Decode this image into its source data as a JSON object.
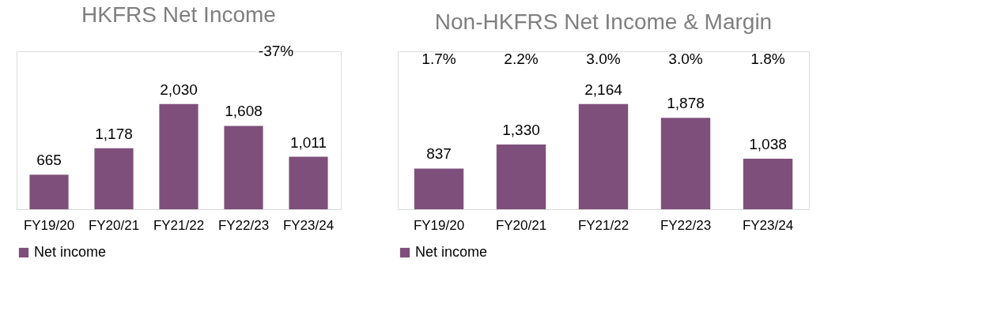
{
  "chart_data": [
    {
      "type": "bar",
      "title": "HKFRS Net Income",
      "categories": [
        "FY19/20",
        "FY20/21",
        "FY21/22",
        "FY22/23",
        "FY23/24"
      ],
      "series": [
        {
          "name": "Net income",
          "color": "#7f4f7b",
          "values": [
            665,
            1178,
            2030,
            1608,
            1011
          ],
          "value_labels": [
            "665",
            "1,178",
            "2,030",
            "1,608",
            "1,011"
          ]
        }
      ],
      "legend": "bottom",
      "annotations": [
        "-37%"
      ]
    },
    {
      "type": "bar",
      "title": "Non-HKFRS Net Income & Margin",
      "categories": [
        "FY19/20",
        "FY20/21",
        "FY21/22",
        "FY22/23",
        "FY23/24"
      ],
      "series": [
        {
          "name": "Net income",
          "color": "#7f4f7b",
          "values": [
            837,
            1330,
            2164,
            1878,
            1038
          ],
          "value_labels": [
            "837",
            "1,330",
            "2,164",
            "1,878",
            "1,038"
          ]
        }
      ],
      "legend": "bottom",
      "annotations": [
        "1.7%",
        "2.2%",
        "3.0%",
        "3.0%",
        "1.8%"
      ]
    }
  ]
}
